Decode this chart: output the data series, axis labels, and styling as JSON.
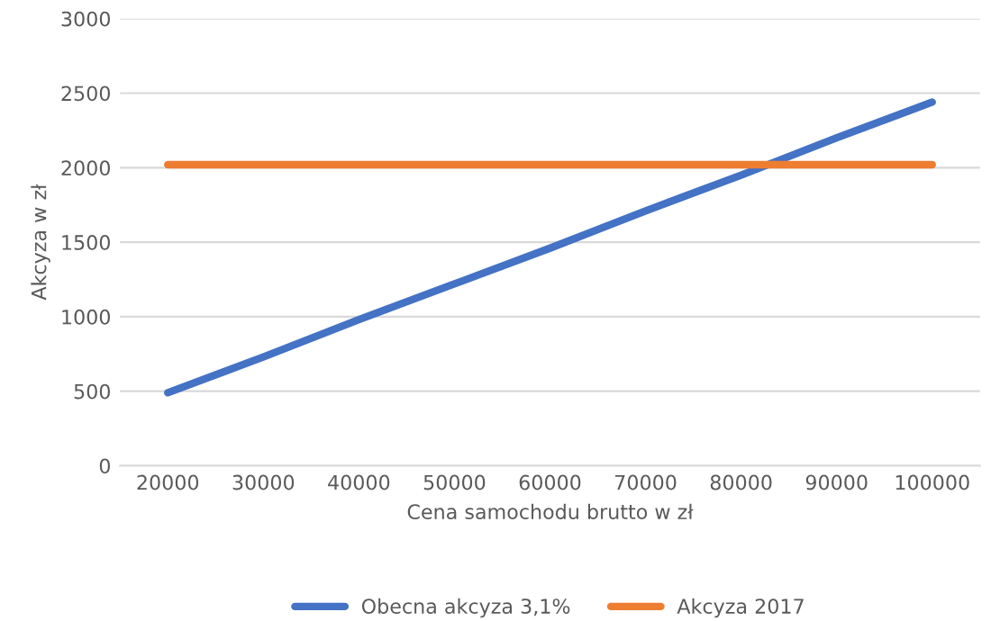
{
  "chart_data": {
    "type": "line",
    "xlabel": "Cena samochodu brutto w zł",
    "ylabel": "Akcyza w zł",
    "categories": [
      "20000",
      "30000",
      "40000",
      "50000",
      "60000",
      "70000",
      "80000",
      "90000",
      "100000"
    ],
    "series": [
      {
        "name": "Obecna akcyza 3,1%",
        "color": "#4472c4",
        "values": [
          490,
          730,
          980,
          1220,
          1460,
          1710,
          1950,
          2200,
          2440
        ]
      },
      {
        "name": "Akcyza 2017",
        "color": "#ed7d31",
        "values": [
          2020,
          2020,
          2020,
          2020,
          2020,
          2020,
          2020,
          2020,
          2020
        ]
      }
    ],
    "ylim": [
      0,
      3000
    ],
    "yticks": [
      0,
      500,
      1000,
      1500,
      2000,
      2500,
      3000
    ],
    "grid": "y",
    "legend": "bottom",
    "marker": "none",
    "line_style": "solid"
  }
}
